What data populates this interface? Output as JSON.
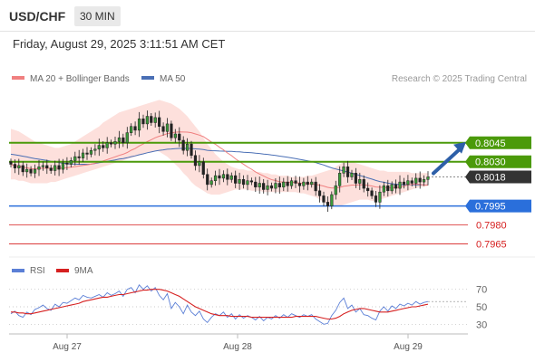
{
  "header": {
    "symbol": "USD/CHF",
    "timeframe": "30 MIN",
    "datetime": "Friday, August 29, 2025 3:11:51 AM CET"
  },
  "legend": {
    "ma20": "MA 20 + Bollinger Bands",
    "ma50": "MA 50",
    "credit": "Research © 2025 Trading Central",
    "ma20_color": "#f08080",
    "ma50_color": "#4a6fb5"
  },
  "rsi_legend": {
    "rsi": "RSI",
    "ma9": "9MA",
    "rsi_color": "#5b7fd6",
    "ma9_color": "#d62020"
  },
  "chart_data": [
    {
      "type": "candlestick",
      "ylim": [
        0.7956,
        0.809
      ],
      "x_labels": [
        "Aug 27",
        "Aug 28",
        "Aug 29"
      ],
      "levels": [
        {
          "value": 0.8045,
          "label": "0.8045",
          "kind": "resistance",
          "color": "#4b9a0a"
        },
        {
          "value": 0.803,
          "label": "0.8030",
          "kind": "resistance",
          "color": "#4b9a0a"
        },
        {
          "value": 0.8018,
          "label": "0.8018",
          "kind": "last",
          "color": "#333333"
        },
        {
          "value": 0.7995,
          "label": "0.7995",
          "kind": "pivot",
          "color": "#2a6fdb"
        },
        {
          "value": 0.798,
          "label": "0.7980",
          "kind": "support",
          "color": "#d62020"
        },
        {
          "value": 0.7965,
          "label": "0.7965",
          "kind": "support",
          "color": "#d62020"
        }
      ],
      "close": [
        0.8028,
        0.8025,
        0.8027,
        0.8022,
        0.8024,
        0.8021,
        0.8024,
        0.8026,
        0.8027,
        0.8025,
        0.8023,
        0.8027,
        0.8024,
        0.8029,
        0.8028,
        0.8031,
        0.8034,
        0.8033,
        0.8037,
        0.8036,
        0.8039,
        0.804,
        0.8043,
        0.8041,
        0.8045,
        0.8044,
        0.8046,
        0.8049,
        0.8045,
        0.8053,
        0.8058,
        0.8055,
        0.8064,
        0.806,
        0.8066,
        0.8061,
        0.8065,
        0.8058,
        0.8054,
        0.806,
        0.8049,
        0.8052,
        0.8047,
        0.8039,
        0.8044,
        0.8035,
        0.8027,
        0.803,
        0.802,
        0.8012,
        0.8015,
        0.8019,
        0.8017,
        0.802,
        0.8016,
        0.8019,
        0.8013,
        0.8016,
        0.8012,
        0.8015,
        0.8014,
        0.801,
        0.8013,
        0.8008,
        0.8011,
        0.8009,
        0.8013,
        0.801,
        0.8014,
        0.8011,
        0.8015,
        0.8013,
        0.8011,
        0.8014,
        0.8012,
        0.8014,
        0.8007,
        0.8003,
        0.7998,
        0.7995,
        0.8004,
        0.8011,
        0.8021,
        0.8026,
        0.8018,
        0.8021,
        0.8013,
        0.8016,
        0.8009,
        0.8007,
        0.8003,
        0.7998,
        0.8006,
        0.8011,
        0.8007,
        0.8012,
        0.8009,
        0.8014,
        0.8012,
        0.8015,
        0.8013,
        0.8017,
        0.8014,
        0.8016,
        0.8018
      ],
      "bb_upper": [
        0.8056,
        0.8055,
        0.8054,
        0.8052,
        0.805,
        0.8048,
        0.8046,
        0.8045,
        0.8044,
        0.8043,
        0.8042,
        0.8041,
        0.8041,
        0.8042,
        0.8043,
        0.8044,
        0.8046,
        0.8048,
        0.805,
        0.8052,
        0.8054,
        0.8056,
        0.8058,
        0.8061,
        0.8063,
        0.8065,
        0.8067,
        0.8069,
        0.807,
        0.8071,
        0.8072,
        0.8073,
        0.8074,
        0.8075,
        0.8076,
        0.8077,
        0.8078,
        0.8079,
        0.8078,
        0.8077,
        0.8076,
        0.8074,
        0.8072,
        0.8069,
        0.8066,
        0.8062,
        0.8058,
        0.8054,
        0.8049,
        0.8044,
        0.804,
        0.8036,
        0.8033,
        0.803,
        0.8028,
        0.8026,
        0.8025,
        0.8024,
        0.8024,
        0.8023,
        0.8023,
        0.8022,
        0.8022,
        0.8021,
        0.8021,
        0.802,
        0.802,
        0.8019,
        0.8019,
        0.8019,
        0.8018,
        0.8018,
        0.8018,
        0.8018,
        0.8019,
        0.8019,
        0.802,
        0.8021,
        0.8022,
        0.8023,
        0.8024,
        0.8026,
        0.8028,
        0.803,
        0.803,
        0.803,
        0.8029,
        0.8028,
        0.8027,
        0.8026,
        0.8025,
        0.8024,
        0.8023,
        0.8023,
        0.8022,
        0.8022,
        0.8022,
        0.8022,
        0.8022,
        0.8022,
        0.8021,
        0.8021,
        0.8021,
        0.8021,
        0.8021
      ],
      "bb_lower": [
        0.8016,
        0.8016,
        0.8015,
        0.8015,
        0.8014,
        0.8013,
        0.8013,
        0.8013,
        0.8013,
        0.8013,
        0.8014,
        0.8014,
        0.8015,
        0.8016,
        0.8017,
        0.8018,
        0.8019,
        0.802,
        0.8021,
        0.8022,
        0.8023,
        0.8024,
        0.8025,
        0.8026,
        0.8027,
        0.8028,
        0.8029,
        0.803,
        0.8031,
        0.8032,
        0.8033,
        0.8034,
        0.8035,
        0.8036,
        0.8037,
        0.8038,
        0.8039,
        0.8038,
        0.8036,
        0.8034,
        0.8031,
        0.8028,
        0.8025,
        0.8021,
        0.8018,
        0.8014,
        0.8011,
        0.8009,
        0.8007,
        0.8005,
        0.8004,
        0.8004,
        0.8004,
        0.8005,
        0.8006,
        0.8007,
        0.8008,
        0.8008,
        0.8008,
        0.8008,
        0.8007,
        0.8007,
        0.8007,
        0.8006,
        0.8006,
        0.8006,
        0.8006,
        0.8006,
        0.8006,
        0.8006,
        0.8006,
        0.8006,
        0.8005,
        0.8005,
        0.8004,
        0.8003,
        0.8002,
        0.8,
        0.7998,
        0.7996,
        0.7995,
        0.7995,
        0.7995,
        0.7996,
        0.7997,
        0.7998,
        0.7999,
        0.8,
        0.8,
        0.8,
        0.7999,
        0.7999,
        0.8,
        0.8001,
        0.8002,
        0.8003,
        0.8004,
        0.8005,
        0.8006,
        0.8007,
        0.8008,
        0.8009,
        0.801,
        0.801,
        0.8011
      ]
    },
    {
      "type": "line",
      "title": "RSI",
      "ylim": [
        20,
        80
      ],
      "y_ticks": [
        70,
        50,
        30
      ],
      "series": [
        {
          "name": "RSI",
          "values": [
            42,
            45,
            40,
            38,
            44,
            41,
            47,
            49,
            52,
            48,
            46,
            53,
            50,
            55,
            54,
            57,
            60,
            58,
            63,
            61,
            60,
            62,
            64,
            61,
            66,
            63,
            65,
            68,
            62,
            70,
            72,
            66,
            75,
            70,
            74,
            68,
            72,
            63,
            58,
            65,
            48,
            55,
            50,
            42,
            52,
            44,
            40,
            45,
            36,
            32,
            38,
            42,
            40,
            44,
            38,
            42,
            36,
            41,
            37,
            40,
            38,
            35,
            39,
            34,
            38,
            36,
            40,
            37,
            41,
            38,
            42,
            40,
            38,
            41,
            39,
            41,
            36,
            33,
            30,
            31,
            40,
            46,
            55,
            60,
            48,
            52,
            44,
            48,
            41,
            40,
            37,
            35,
            45,
            50,
            45,
            51,
            48,
            53,
            51,
            54,
            52,
            56,
            53,
            55,
            56
          ]
        },
        {
          "name": "9MA",
          "values": [
            44,
            44,
            43,
            43,
            42,
            42,
            43,
            44,
            45,
            46,
            47,
            48,
            49,
            50,
            51,
            52,
            53,
            54,
            56,
            57,
            58,
            59,
            60,
            61,
            61,
            62,
            63,
            64,
            64,
            65,
            66,
            67,
            68,
            69,
            69,
            70,
            70,
            70,
            69,
            68,
            66,
            64,
            62,
            59,
            56,
            53,
            50,
            48,
            46,
            44,
            42,
            41,
            40,
            40,
            40,
            39,
            39,
            39,
            39,
            39,
            38,
            38,
            38,
            38,
            38,
            38,
            38,
            38,
            38,
            38,
            38,
            39,
            39,
            39,
            39,
            39,
            39,
            38,
            37,
            36,
            36,
            37,
            39,
            42,
            44,
            46,
            47,
            48,
            48,
            47,
            46,
            45,
            44,
            44,
            44,
            45,
            46,
            47,
            48,
            49,
            50,
            50,
            51,
            52,
            53
          ]
        }
      ]
    }
  ]
}
